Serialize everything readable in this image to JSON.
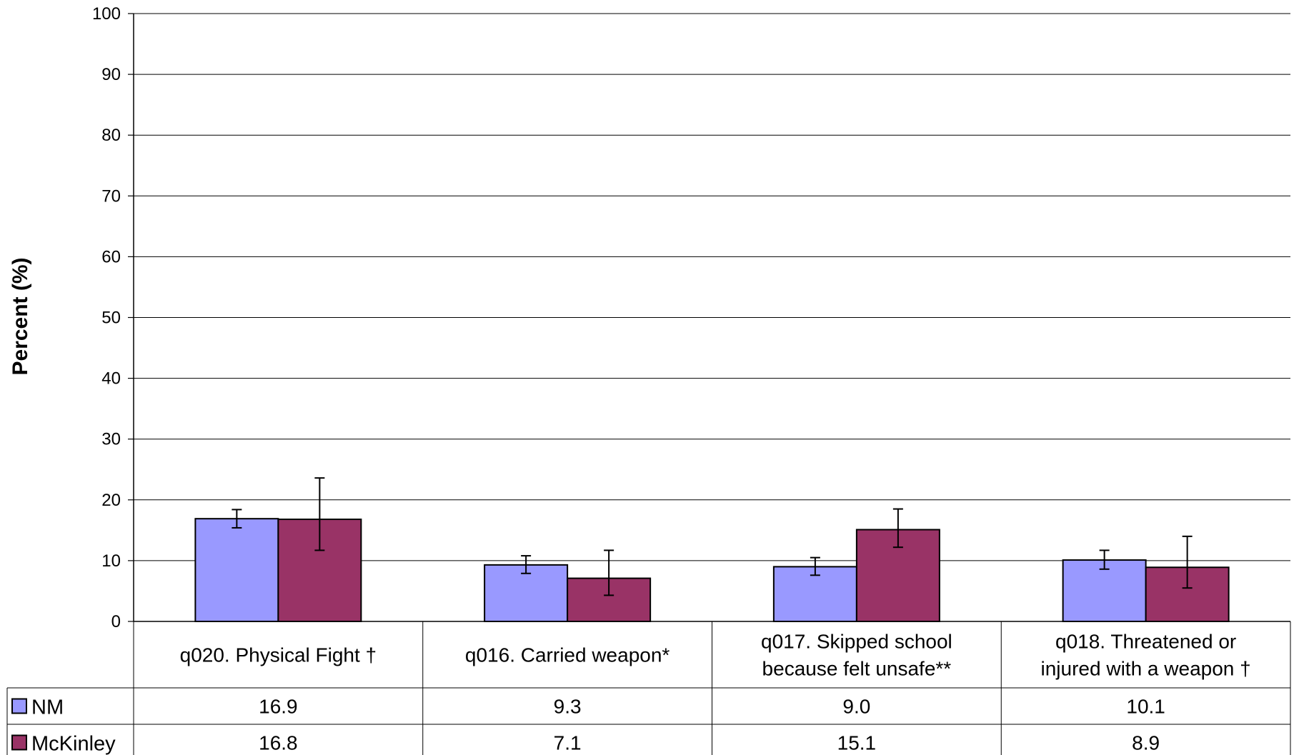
{
  "chart_data": {
    "type": "bar",
    "title": "",
    "ylabel": "Percent (%)",
    "xlabel": "",
    "ylim": [
      0,
      100
    ],
    "yticks": [
      0,
      10,
      20,
      30,
      40,
      50,
      60,
      70,
      80,
      90,
      100
    ],
    "grid": true,
    "categories": [
      "q020. Physical Fight †",
      "q016. Carried weapon*",
      "q017. Skipped school because felt unsafe**",
      "q018. Threatened or injured with a weapon †"
    ],
    "series": [
      {
        "name": "NM",
        "color": "#9999ff",
        "values": [
          16.9,
          9.3,
          9.0,
          10.1
        ],
        "labels": [
          "16.9",
          "9.3",
          "9.0",
          "10.1"
        ],
        "error_low": [
          15.4,
          7.9,
          7.6,
          8.6
        ],
        "error_high": [
          18.4,
          10.8,
          10.5,
          11.7
        ]
      },
      {
        "name": "McKinley",
        "color": "#993366",
        "values": [
          16.8,
          7.1,
          15.1,
          8.9
        ],
        "labels": [
          "16.8",
          "7.1",
          "15.1",
          "8.9"
        ],
        "error_low": [
          11.7,
          4.3,
          12.2,
          5.5
        ],
        "error_high": [
          23.6,
          11.7,
          18.5,
          14.0
        ]
      }
    ],
    "legend_placement": "data-table"
  }
}
